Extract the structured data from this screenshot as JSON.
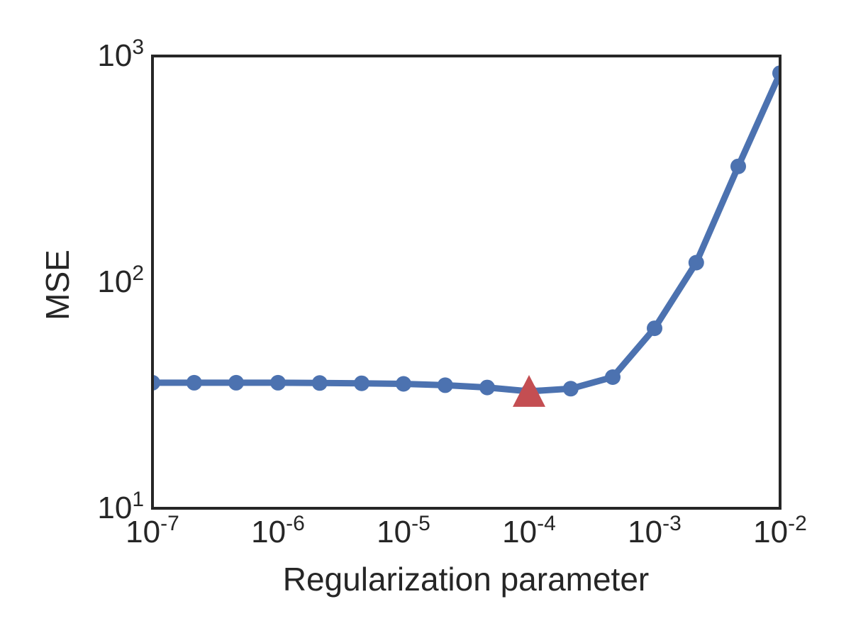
{
  "chart_data": {
    "type": "line",
    "title": "",
    "xlabel": "Regularization parameter",
    "ylabel": "MSE",
    "x_scale": "log",
    "y_scale": "log",
    "xlim": [
      1e-07,
      0.01
    ],
    "ylim": [
      10,
      1000
    ],
    "x_ticks": [
      {
        "base": "10",
        "exp": "-7"
      },
      {
        "base": "10",
        "exp": "-6"
      },
      {
        "base": "10",
        "exp": "-5"
      },
      {
        "base": "10",
        "exp": "-4"
      },
      {
        "base": "10",
        "exp": "-3"
      },
      {
        "base": "10",
        "exp": "-2"
      }
    ],
    "y_ticks": [
      {
        "base": "10",
        "exp": "1"
      },
      {
        "base": "10",
        "exp": "2"
      },
      {
        "base": "10",
        "exp": "3"
      }
    ],
    "grid": false,
    "series": [
      {
        "color": "#4c72b0",
        "marker": "circle",
        "x": [
          1e-07,
          2.15e-07,
          4.64e-07,
          1e-06,
          2.15e-06,
          4.64e-06,
          1e-05,
          2.15e-05,
          4.64e-05,
          0.0001,
          0.000215,
          0.000464,
          0.001,
          0.00215,
          0.00464,
          0.01
        ],
        "y": [
          35.9,
          35.9,
          35.9,
          35.9,
          35.8,
          35.7,
          35.5,
          35.0,
          34.2,
          32.9,
          33.8,
          38.0,
          62.5,
          122,
          325,
          840
        ]
      }
    ],
    "highlight": {
      "marker": "triangle",
      "color": "#c44e52",
      "x": 0.0001,
      "y": 32.9
    }
  }
}
